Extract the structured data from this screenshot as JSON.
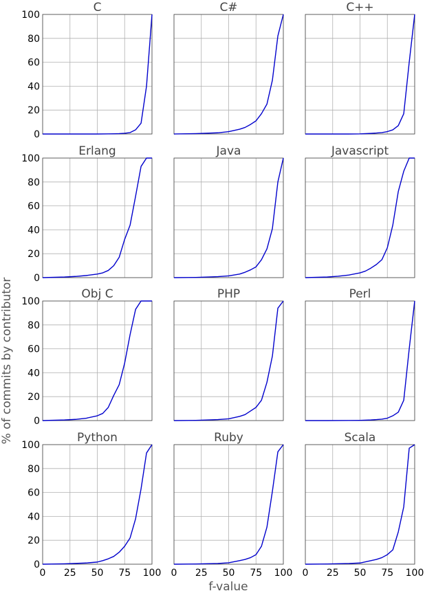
{
  "chart_data": {
    "type": "line",
    "xlabel": "f-value",
    "ylabel": "% of commits by contributor",
    "xlim": [
      0,
      100
    ],
    "ylim": [
      0,
      100
    ],
    "x_ticks": [
      0,
      25,
      50,
      75,
      100
    ],
    "y_ticks": [
      0,
      20,
      40,
      60,
      80,
      100
    ],
    "grid": true,
    "line_color": "#0000cc",
    "panels": [
      {
        "title": "C",
        "x": [
          0,
          20,
          40,
          50,
          60,
          65,
          70,
          75,
          80,
          85,
          90,
          95,
          100
        ],
        "y": [
          0,
          0,
          0,
          0,
          0.1,
          0.2,
          0.3,
          0.6,
          1.2,
          3.5,
          9,
          40,
          100
        ]
      },
      {
        "title": "C#",
        "x": [
          0,
          20,
          40,
          50,
          60,
          65,
          70,
          75,
          80,
          85,
          90,
          95,
          100
        ],
        "y": [
          0,
          0.3,
          1,
          2,
          4,
          5.5,
          8,
          11,
          17,
          25,
          45,
          82,
          100
        ]
      },
      {
        "title": "C++",
        "x": [
          0,
          20,
          40,
          50,
          60,
          65,
          70,
          75,
          80,
          85,
          90,
          95,
          100
        ],
        "y": [
          0,
          0,
          0,
          0.1,
          0.5,
          0.8,
          1.2,
          2,
          3.5,
          7,
          17,
          60,
          100
        ]
      },
      {
        "title": "Erlang",
        "x": [
          0,
          20,
          30,
          40,
          50,
          55,
          60,
          65,
          70,
          75,
          80,
          85,
          90,
          95,
          100
        ],
        "y": [
          0,
          0.5,
          1,
          1.8,
          3,
          4,
          6,
          10,
          17,
          32,
          44,
          68,
          93,
          100,
          100
        ]
      },
      {
        "title": "Java",
        "x": [
          0,
          20,
          40,
          50,
          60,
          65,
          70,
          75,
          80,
          85,
          90,
          95,
          100
        ],
        "y": [
          0,
          0.2,
          0.8,
          1.5,
          3,
          4.5,
          6.5,
          9,
          15,
          24,
          41,
          80,
          100
        ]
      },
      {
        "title": "Javascript",
        "x": [
          0,
          20,
          30,
          40,
          50,
          55,
          60,
          65,
          70,
          75,
          80,
          85,
          90,
          95,
          100
        ],
        "y": [
          0,
          0.5,
          1.2,
          2.2,
          4,
          5.5,
          8,
          11,
          15,
          25,
          44,
          72,
          89,
          100,
          100
        ]
      },
      {
        "title": "Obj C",
        "x": [
          0,
          20,
          30,
          40,
          50,
          55,
          60,
          65,
          70,
          75,
          80,
          85,
          90,
          95,
          100
        ],
        "y": [
          0,
          0.5,
          1,
          2,
          4,
          6,
          11,
          21,
          30,
          48,
          72,
          93,
          100,
          100,
          100
        ]
      },
      {
        "title": "PHP",
        "x": [
          0,
          20,
          40,
          50,
          60,
          65,
          70,
          75,
          80,
          85,
          90,
          95,
          100
        ],
        "y": [
          0,
          0.2,
          0.8,
          1.5,
          3.5,
          5,
          8,
          11,
          17,
          32,
          54,
          94,
          100
        ]
      },
      {
        "title": "Perl",
        "x": [
          0,
          20,
          40,
          50,
          60,
          65,
          70,
          75,
          80,
          85,
          90,
          95,
          100
        ],
        "y": [
          0,
          0,
          0.1,
          0.2,
          0.5,
          0.8,
          1.2,
          2,
          4,
          7,
          17,
          60,
          100
        ]
      },
      {
        "title": "Python",
        "x": [
          0,
          20,
          40,
          50,
          55,
          60,
          65,
          70,
          75,
          80,
          85,
          90,
          95,
          100
        ],
        "y": [
          0,
          0.3,
          1,
          1.8,
          3,
          4.5,
          6.5,
          10,
          15,
          22,
          38,
          63,
          93,
          100
        ]
      },
      {
        "title": "Ruby",
        "x": [
          0,
          20,
          40,
          50,
          60,
          65,
          70,
          75,
          80,
          85,
          90,
          95,
          100
        ],
        "y": [
          0,
          0.2,
          0.6,
          1.2,
          3,
          4,
          5.5,
          8,
          15,
          31,
          61,
          94,
          100
        ]
      },
      {
        "title": "Scala",
        "x": [
          0,
          20,
          40,
          50,
          55,
          60,
          65,
          70,
          75,
          80,
          85,
          90,
          95,
          100
        ],
        "y": [
          0,
          0.2,
          0.6,
          1,
          2,
          3,
          4,
          5.5,
          8,
          12,
          27,
          48,
          97,
          100
        ]
      }
    ]
  }
}
